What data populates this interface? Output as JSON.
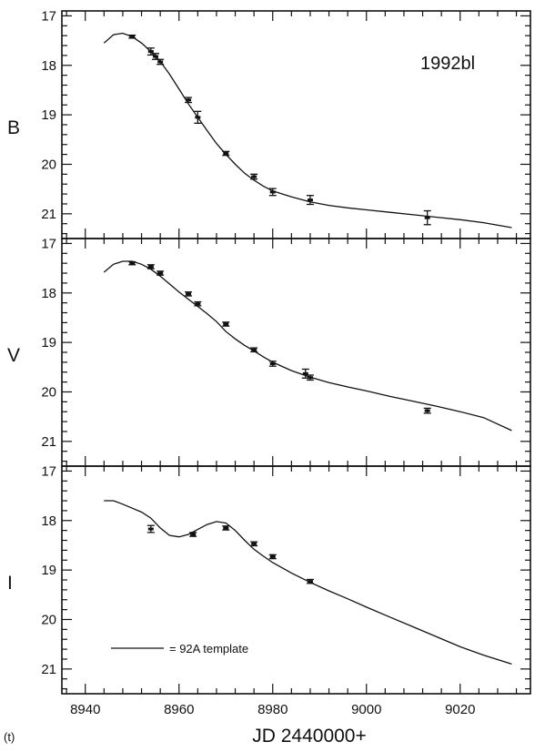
{
  "figure": {
    "supernova_label": "1992bl",
    "xlabel": "JD 2440000+",
    "panel_tag": "(t)",
    "legend_label": "= 92A template"
  },
  "chart_data": [
    {
      "type": "line",
      "panel": "B",
      "ylabel": "B",
      "xlim": [
        8935,
        9035
      ],
      "ylim": [
        21.5,
        16.9
      ],
      "y_inverted": true,
      "yticks": [
        17,
        18,
        19,
        20,
        21
      ],
      "xticks": [
        8940,
        8960,
        8980,
        9000,
        9020
      ],
      "series": [
        {
          "kind": "template",
          "x": [
            8944,
            8946,
            8948,
            8950,
            8952,
            8954,
            8956,
            8958,
            8960,
            8962,
            8964,
            8966,
            8968,
            8970,
            8972,
            8974,
            8976,
            8978,
            8980,
            8984,
            8988,
            8992,
            8996,
            9000,
            9005,
            9010,
            9015,
            9020,
            9025,
            9031
          ],
          "y": [
            17.55,
            17.38,
            17.35,
            17.42,
            17.55,
            17.72,
            17.92,
            18.18,
            18.48,
            18.78,
            19.05,
            19.32,
            19.58,
            19.8,
            20.0,
            20.18,
            20.32,
            20.44,
            20.54,
            20.66,
            20.76,
            20.83,
            20.88,
            20.92,
            20.97,
            21.02,
            21.07,
            21.12,
            21.18,
            21.28
          ]
        },
        {
          "kind": "observations",
          "x": [
            8950,
            8954,
            8955,
            8956,
            8962,
            8964,
            8970,
            8976,
            8980,
            8988,
            9013
          ],
          "y": [
            17.42,
            17.72,
            17.82,
            17.93,
            18.7,
            19.05,
            19.78,
            20.25,
            20.56,
            20.72,
            21.08
          ],
          "err": [
            0.03,
            0.07,
            0.06,
            0.05,
            0.05,
            0.12,
            0.04,
            0.05,
            0.07,
            0.09,
            0.14
          ]
        }
      ]
    },
    {
      "type": "line",
      "panel": "V",
      "ylabel": "V",
      "xlim": [
        8935,
        9035
      ],
      "ylim": [
        21.5,
        16.9
      ],
      "y_inverted": true,
      "yticks": [
        17,
        18,
        19,
        20,
        21
      ],
      "xticks": [
        8940,
        8960,
        8980,
        9000,
        9020
      ],
      "series": [
        {
          "kind": "template",
          "x": [
            8944,
            8946,
            8948,
            8950,
            8952,
            8954,
            8956,
            8958,
            8960,
            8962,
            8964,
            8966,
            8968,
            8970,
            8972,
            8974,
            8976,
            8978,
            8980,
            8984,
            8988,
            8992,
            8996,
            9000,
            9005,
            9010,
            9015,
            9020,
            9025,
            9031
          ],
          "y": [
            17.58,
            17.42,
            17.36,
            17.36,
            17.42,
            17.52,
            17.66,
            17.82,
            17.98,
            18.13,
            18.27,
            18.42,
            18.58,
            18.78,
            18.93,
            19.06,
            19.17,
            19.29,
            19.4,
            19.57,
            19.7,
            19.81,
            19.9,
            19.98,
            20.09,
            20.19,
            20.29,
            20.4,
            20.52,
            20.78
          ]
        },
        {
          "kind": "observations",
          "x": [
            8950,
            8954,
            8956,
            8962,
            8964,
            8970,
            8976,
            8980,
            8987,
            8988,
            9013
          ],
          "y": [
            17.4,
            17.47,
            17.6,
            18.02,
            18.22,
            18.63,
            19.15,
            19.43,
            19.63,
            19.71,
            20.38
          ],
          "err": [
            0.03,
            0.04,
            0.04,
            0.04,
            0.04,
            0.04,
            0.04,
            0.05,
            0.09,
            0.05,
            0.05
          ]
        }
      ]
    },
    {
      "type": "line",
      "panel": "I",
      "ylabel": "I",
      "xlim": [
        8935,
        9035
      ],
      "ylim": [
        21.5,
        16.9
      ],
      "y_inverted": true,
      "yticks": [
        17,
        18,
        19,
        20,
        21
      ],
      "xticks": [
        8940,
        8960,
        8980,
        9000,
        9020
      ],
      "series": [
        {
          "kind": "template",
          "x": [
            8944,
            8946,
            8948,
            8950,
            8952,
            8954,
            8956,
            8958,
            8960,
            8962,
            8964,
            8966,
            8968,
            8970,
            8972,
            8974,
            8976,
            8978,
            8980,
            8984,
            8988,
            8992,
            8996,
            9000,
            9005,
            9010,
            9015,
            9020,
            9025,
            9031
          ],
          "y": [
            17.6,
            17.6,
            17.67,
            17.75,
            17.83,
            17.95,
            18.15,
            18.3,
            18.33,
            18.28,
            18.18,
            18.08,
            18.02,
            18.05,
            18.2,
            18.4,
            18.58,
            18.72,
            18.85,
            19.06,
            19.25,
            19.42,
            19.58,
            19.75,
            19.95,
            20.15,
            20.35,
            20.55,
            20.72,
            20.9
          ]
        },
        {
          "kind": "observations",
          "x": [
            8954,
            8963,
            8970,
            8976,
            8980,
            8988
          ],
          "y": [
            18.17,
            18.28,
            18.15,
            18.47,
            18.73,
            19.23
          ],
          "err": [
            0.07,
            0.04,
            0.04,
            0.04,
            0.04,
            0.04
          ]
        }
      ]
    }
  ]
}
